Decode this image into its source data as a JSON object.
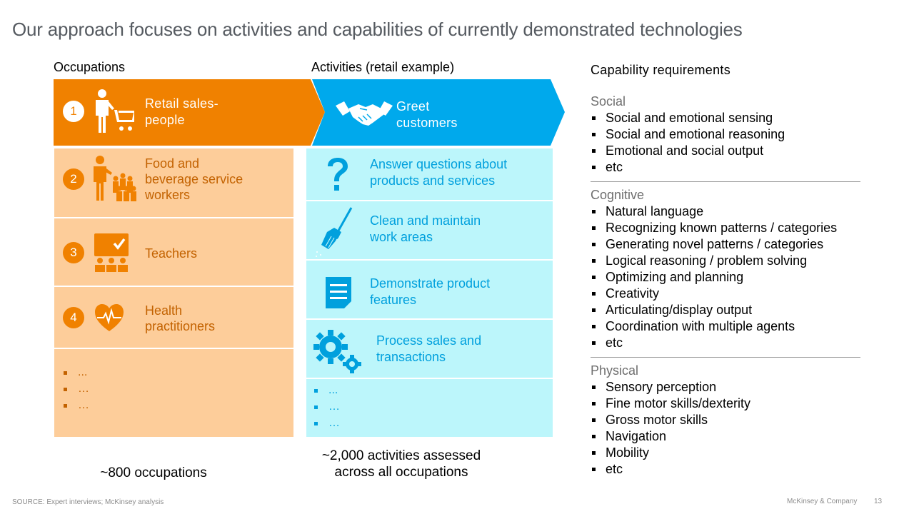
{
  "title": "Our approach focuses on activities and capabilities of currently demonstrated technologies",
  "columns": {
    "occupations_header": "Occupations",
    "activities_header": "Activities (retail example)",
    "capabilities_header": "Capability requirements"
  },
  "occupations": [
    {
      "num": "1",
      "label": "Retail sales-\npeople",
      "icon": "salesperson-cart-icon"
    },
    {
      "num": "2",
      "label": "Food and\nbeverage service\nworkers",
      "icon": "server-crowd-icon"
    },
    {
      "num": "3",
      "label": "Teachers",
      "icon": "teacher-board-icon"
    },
    {
      "num": "4",
      "label": "Health\npractitioners",
      "icon": "heart-pulse-icon"
    }
  ],
  "occupation_more": [
    "...",
    "…",
    "…"
  ],
  "activities": [
    {
      "label": "Greet\ncustomers",
      "icon": "handshake-icon"
    },
    {
      "label": "Answer questions about\nproducts and services",
      "icon": "question-mark-icon"
    },
    {
      "label": "Clean and maintain\nwork areas",
      "icon": "broom-icon"
    },
    {
      "label": "Demonstrate product\nfeatures",
      "icon": "document-icon"
    },
    {
      "label": "Process sales and\ntransactions",
      "icon": "gears-icon"
    }
  ],
  "activity_more": [
    "...",
    "…",
    "…"
  ],
  "footnotes": {
    "occupations": "~800 occupations",
    "activities": "~2,000 activities assessed\nacross all occupations"
  },
  "capabilities": [
    {
      "group": "Social",
      "items": [
        "Social and emotional sensing",
        "Social and emotional reasoning",
        "Emotional and social output",
        "etc"
      ]
    },
    {
      "group": "Cognitive",
      "items": [
        "Natural language",
        "Recognizing known patterns / categories",
        "Generating novel patterns / categories",
        "Logical reasoning / problem solving",
        "Optimizing and planning",
        "Creativity",
        "Articulating/display output",
        "Coordination with multiple agents",
        "etc"
      ]
    },
    {
      "group": "Physical",
      "items": [
        "Sensory perception",
        "Fine motor skills/dexterity",
        "Gross motor skills",
        "Navigation",
        "Mobility",
        "etc"
      ]
    }
  ],
  "footer": {
    "source": "SOURCE: Expert interviews; McKinsey analysis",
    "brand": "McKinsey & Company",
    "page": "13"
  },
  "colors": {
    "orange": "#f08100",
    "orange_light": "#fdcd9a",
    "blue": "#00a9ec",
    "cyan_light": "#bcf6fb",
    "title_gray": "#555a60"
  }
}
